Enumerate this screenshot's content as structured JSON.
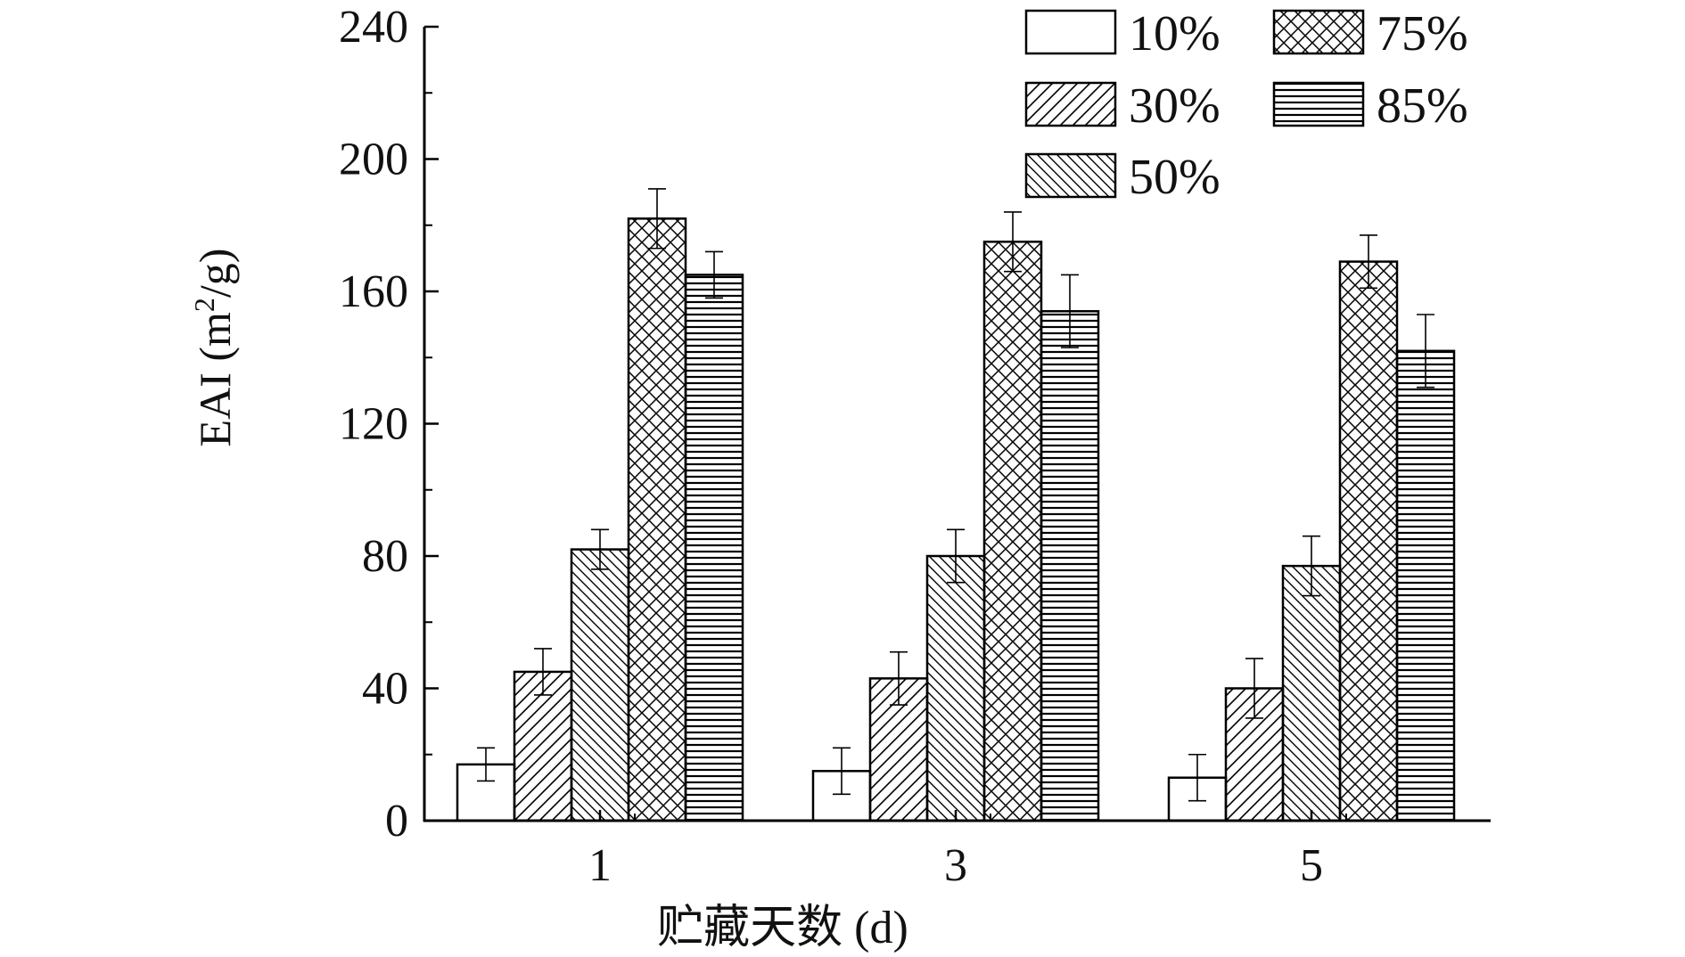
{
  "chart_data": {
    "type": "bar",
    "title": "",
    "xlabel": "贮藏天数 (d)",
    "ylabel_main": "EAI (m",
    "ylabel_sup": "2",
    "ylabel_tail": "/g)",
    "categories": [
      "1",
      "3",
      "5"
    ],
    "ylim": [
      0,
      240
    ],
    "yticks": [
      "0",
      "40",
      "80",
      "120",
      "160",
      "200",
      "240"
    ],
    "legend_position": "top-right",
    "series": [
      {
        "name": "10%",
        "pattern": "empty",
        "values": [
          17,
          15,
          13
        ],
        "errors": [
          5,
          7,
          7
        ]
      },
      {
        "name": "30%",
        "pattern": "diag-right",
        "values": [
          45,
          43,
          40
        ],
        "errors": [
          7,
          8,
          9
        ]
      },
      {
        "name": "50%",
        "pattern": "diag-left",
        "values": [
          82,
          80,
          77
        ],
        "errors": [
          6,
          8,
          9
        ]
      },
      {
        "name": "75%",
        "pattern": "cross",
        "values": [
          182,
          175,
          169
        ],
        "errors": [
          9,
          9,
          8
        ]
      },
      {
        "name": "85%",
        "pattern": "horizontal",
        "values": [
          165,
          154,
          142
        ],
        "errors": [
          7,
          11,
          11
        ]
      }
    ],
    "colors": {
      "bar_stroke": "#000000",
      "bar_fill": "#ffffff",
      "text": "#111111"
    }
  }
}
